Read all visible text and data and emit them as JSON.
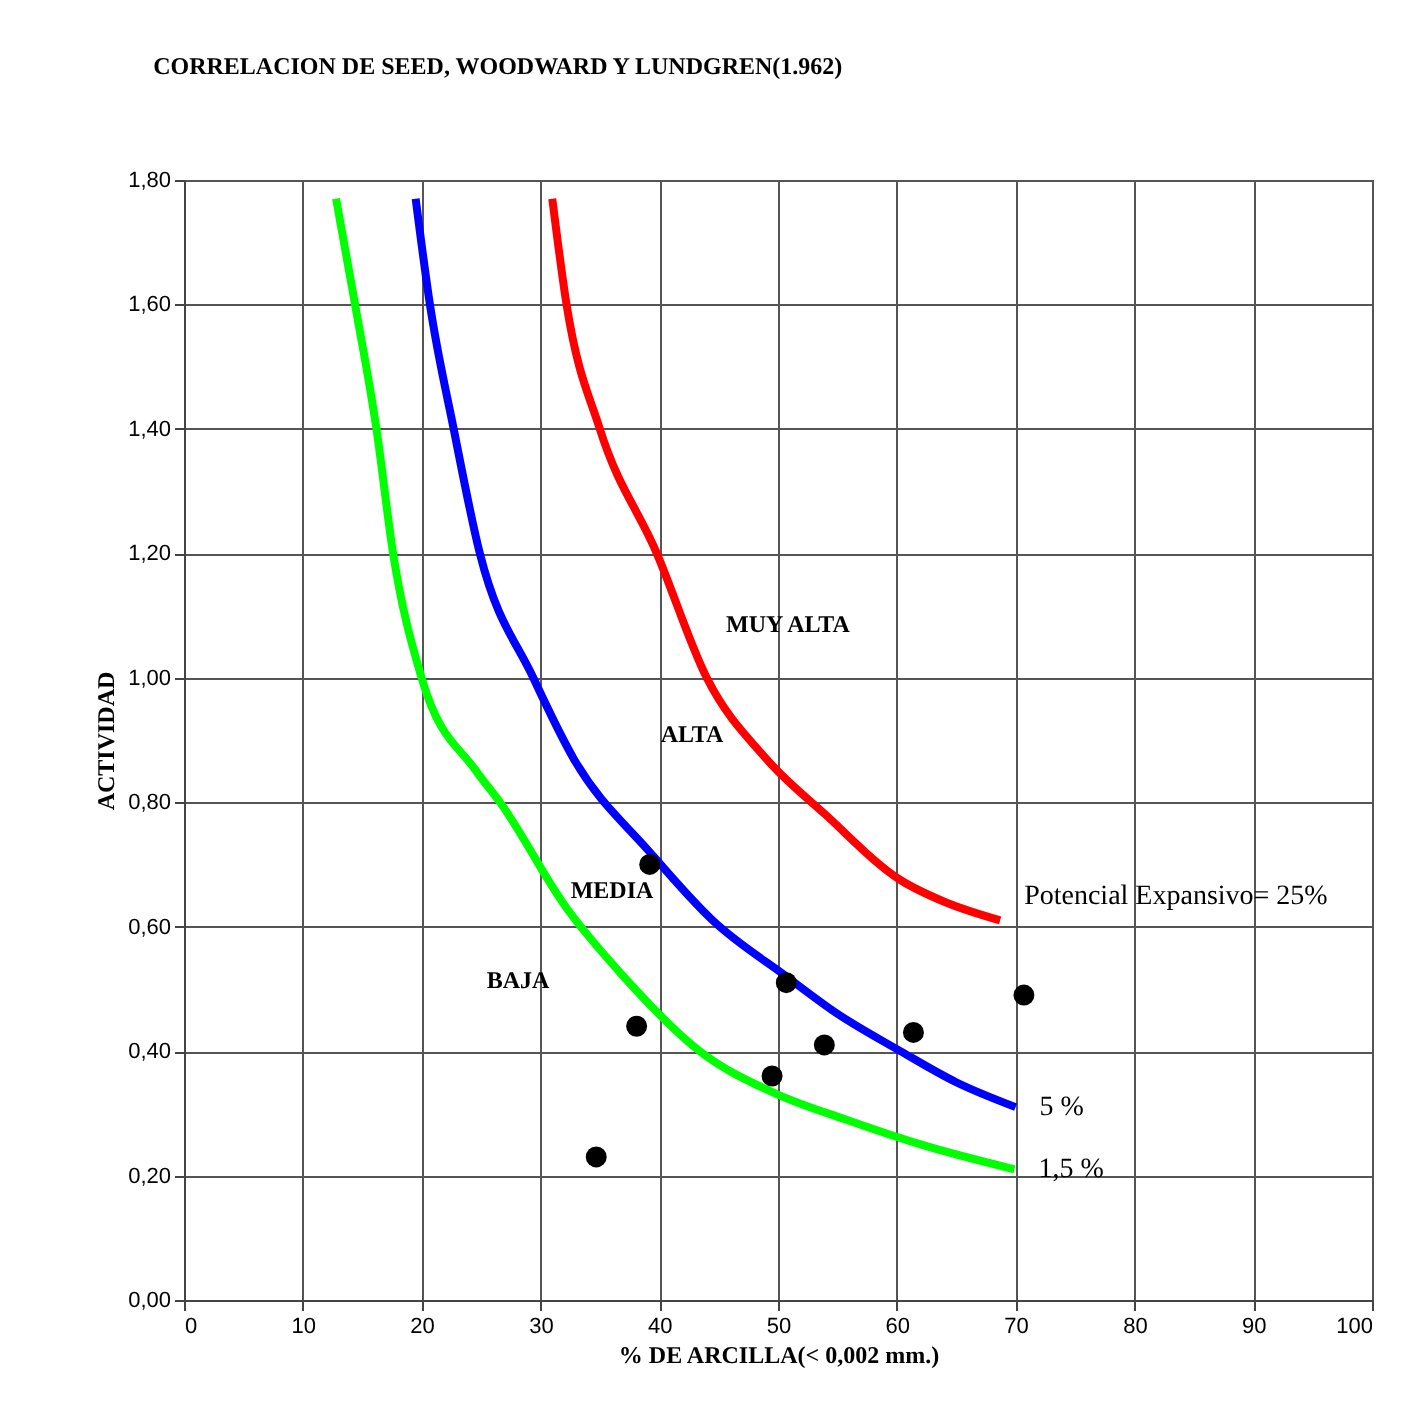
{
  "chart_data": {
    "type": "line",
    "title": "CORRELACION DE SEED, WOODWARD Y LUNDGREN(1.962)",
    "xlabel": "% DE ARCILLA(< 0,002 mm.)",
    "ylabel": "ACTIVIDAD",
    "xlim": [
      0,
      100
    ],
    "xticks": [
      0,
      10,
      20,
      30,
      40,
      50,
      60,
      70,
      80,
      90,
      100
    ],
    "ylim": [
      0,
      1.8
    ],
    "yticks": [
      {
        "value": 0,
        "label": "0,00"
      },
      {
        "value": 0.2,
        "label": "0,20"
      },
      {
        "value": 0.4,
        "label": "0,40"
      },
      {
        "value": 0.6,
        "label": "0,60"
      },
      {
        "value": 0.8,
        "label": "0,80"
      },
      {
        "value": 1.0,
        "label": "1,00"
      },
      {
        "value": 1.2,
        "label": "1,20"
      },
      {
        "value": 1.4,
        "label": "1,40"
      },
      {
        "value": 1.6,
        "label": "1,60"
      },
      {
        "value": 1.8,
        "label": "1,80"
      }
    ],
    "grid": true,
    "series": [
      {
        "name": "Potencial  Expansivo= 25%",
        "color": "#ff0000",
        "x": [
          31.0,
          32.2,
          35.0,
          39.8,
          44.0,
          49.0,
          54.0,
          60.3,
          64.0,
          68.7
        ],
        "values": [
          1.77,
          1.6,
          1.4,
          1.2,
          1.0,
          0.87,
          0.78,
          0.675,
          0.64,
          0.61
        ]
      },
      {
        "name": "5 %",
        "color": "#0000ff",
        "x": [
          19.5,
          20.7,
          22.7,
          24.9,
          29.4,
          32.8,
          39.2,
          44.5,
          50.7,
          55.0,
          60.3,
          65.0,
          70.0
        ],
        "values": [
          1.77,
          1.6,
          1.4,
          1.2,
          1.0,
          0.87,
          0.72,
          0.61,
          0.52,
          0.46,
          0.4,
          0.35,
          0.31
        ]
      },
      {
        "name": "1,5 %",
        "color": "#00ff00",
        "x": [
          12.8,
          14.4,
          16.2,
          17.6,
          20.0,
          24.6,
          26.6,
          32.2,
          37.0,
          43.4,
          50.0,
          55.7,
          62.0,
          69.9
        ],
        "values": [
          1.77,
          1.6,
          1.4,
          1.2,
          1.0,
          0.85,
          0.8,
          0.63,
          0.52,
          0.4,
          0.33,
          0.29,
          0.25,
          0.21
        ]
      },
      {
        "type": "scatter",
        "color": "#000000",
        "marker": "circle",
        "x": [
          39.2,
          50.7,
          38.1,
          53.9,
          61.4,
          70.7,
          49.5,
          34.7
        ],
        "values": [
          0.7,
          0.51,
          0.44,
          0.41,
          0.43,
          0.49,
          0.36,
          0.23
        ]
      }
    ],
    "annotations": [
      "MUY ALTA",
      "ALTA",
      "MEDIA",
      "BAJA"
    ]
  }
}
